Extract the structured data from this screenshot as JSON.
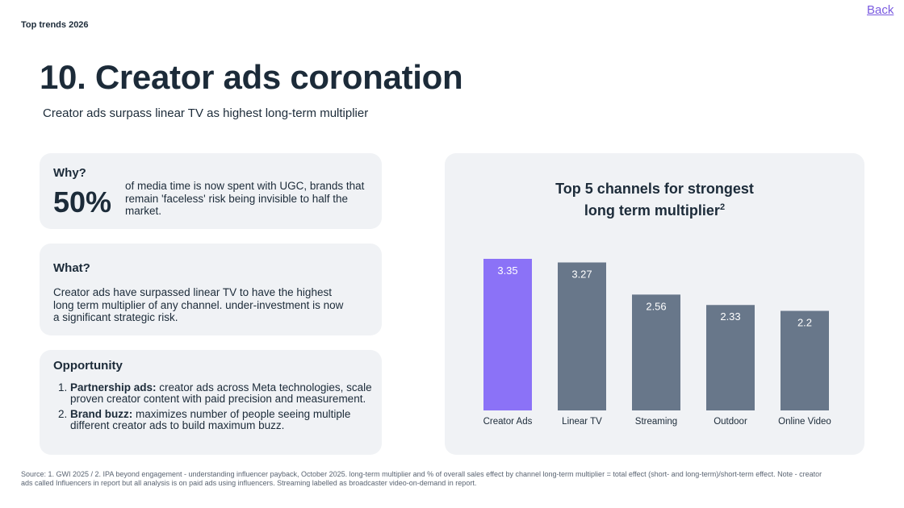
{
  "header": {
    "eyebrow": "Top trends 2026",
    "back_link": "Back"
  },
  "title": "10. Creator ads coronation",
  "subtitle": "Creator ads surpass linear TV as highest long-term multiplier",
  "why": {
    "heading": "Why?",
    "stat": "50%",
    "text": "of media time is now spent with UGC, brands that remain 'faceless' risk being invisible to half the market."
  },
  "what": {
    "heading": "What?",
    "text": "Creator ads have surpassed linear TV to have the highest long term multiplier of any channel. under-investment is now a significant strategic risk."
  },
  "opportunity": {
    "heading": "Opportunity",
    "items": [
      {
        "bold": "Partnership ads:",
        "text": " creator ads across Meta technologies, scale proven creator content with paid precision and measurement."
      },
      {
        "bold": "Brand buzz:",
        "text": " maximizes number of people seeing multiple different creator ads to build maximum buzz."
      }
    ]
  },
  "chart_data": {
    "type": "bar",
    "title_line1": "Top 5 channels for strongest",
    "title_line2": "long term multiplier",
    "title_sup": "2",
    "categories": [
      "Creator Ads",
      "Linear TV",
      "Streaming",
      "Outdoor",
      "Online Video"
    ],
    "values": [
      3.35,
      3.27,
      2.56,
      2.33,
      2.2
    ],
    "labels": [
      "3.35",
      "3.27",
      "2.56",
      "2.33",
      "2.2"
    ],
    "ylim": [
      0,
      3.35
    ],
    "highlight_color": "#8b72f7",
    "bar_color": "#68778a",
    "grid": false
  },
  "source": "Source: 1. GWI 2025 /  2.  IPA beyond engagement - understanding influencer payback, October 2025. long-term multiplier and % of overall sales effect by channel long-term multiplier = total effect (short- and long-term)/short-term effect. Note - creator ads called Influencers in report but all analysis is on paid ads using influencers. Streaming labelled as broadcaster video-on-demand in report."
}
